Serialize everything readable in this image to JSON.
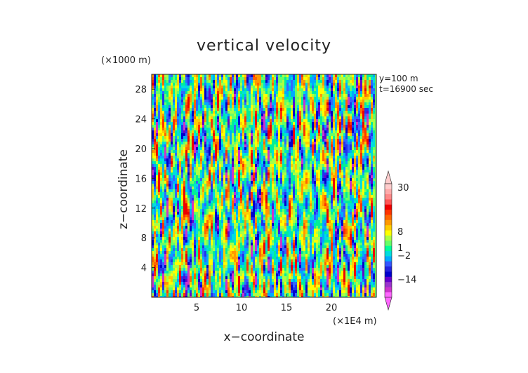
{
  "chart_data": {
    "type": "heatmap",
    "title": "vertical velocity",
    "xlabel": "x−coordinate",
    "ylabel": "z−coordinate",
    "x_unit": "(×1E4 m)",
    "y_unit": "(×1000 m)",
    "annotations": [
      "y=100  m",
      "t=16900 sec"
    ],
    "xlim": [
      0,
      25
    ],
    "ylim": [
      0,
      30
    ],
    "x_ticks": [
      5,
      10,
      15,
      20
    ],
    "y_ticks": [
      4,
      8,
      12,
      16,
      20,
      24,
      28
    ],
    "colorbar": {
      "tick_values": [
        30,
        8,
        1,
        -2,
        -14
      ],
      "tick_labels": [
        "30",
        "8",
        "1",
        "−2",
        "−14"
      ],
      "colors": [
        "#ff66ff",
        "#cc33cc",
        "#9933cc",
        "#6600cc",
        "#0000cc",
        "#2222dd",
        "#3355ff",
        "#00aaff",
        "#00dddd",
        "#00ff99",
        "#66ff66",
        "#aaff44",
        "#ffff00",
        "#ffcc00",
        "#ff9900",
        "#ff6600",
        "#ff3300",
        "#ee0000",
        "#ff5555",
        "#ff8888",
        "#ffaaaa",
        "#ffcccc"
      ]
    },
    "field_style": "turbulent columnar updrafts (orange/red) and downdrafts (blue) over green background"
  }
}
